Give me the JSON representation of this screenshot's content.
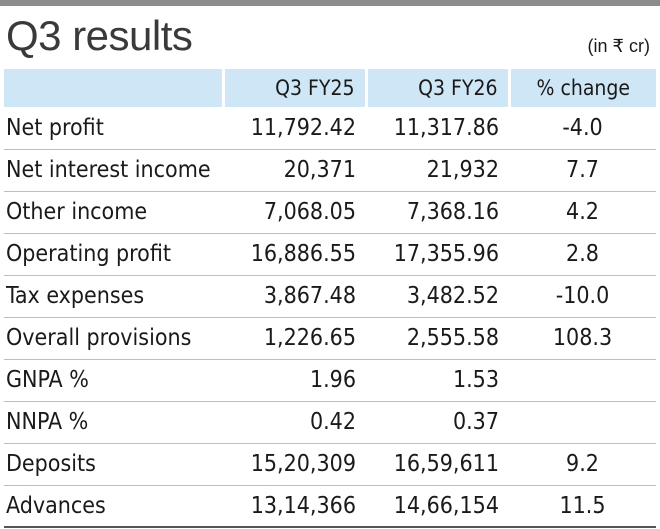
{
  "title": "Q3 results",
  "unit_note": "(in ₹ cr)",
  "chart_data": {
    "type": "table",
    "columns": [
      "",
      "Q3 FY25",
      "Q3 FY26",
      "% change"
    ],
    "rows": [
      {
        "label": "Net profit",
        "q3_fy25": "11,792.42",
        "q3_fy26": "11,317.86",
        "pct_change": "-4.0"
      },
      {
        "label": "Net interest income",
        "q3_fy25": "20,371",
        "q3_fy26": "21,932",
        "pct_change": "7.7"
      },
      {
        "label": "Other income",
        "q3_fy25": "7,068.05",
        "q3_fy26": "7,368.16",
        "pct_change": "4.2"
      },
      {
        "label": "Operating profit",
        "q3_fy25": "16,886.55",
        "q3_fy26": "17,355.96",
        "pct_change": "2.8"
      },
      {
        "label": "Tax expenses",
        "q3_fy25": "3,867.48",
        "q3_fy26": "3,482.52",
        "pct_change": "-10.0"
      },
      {
        "label": "Overall provisions",
        "q3_fy25": "1,226.65",
        "q3_fy26": "2,555.58",
        "pct_change": "108.3"
      },
      {
        "label": "GNPA %",
        "q3_fy25": "1.96",
        "q3_fy26": "1.53",
        "pct_change": ""
      },
      {
        "label": "NNPA %",
        "q3_fy25": "0.42",
        "q3_fy26": "0.37",
        "pct_change": ""
      },
      {
        "label": "Deposits",
        "q3_fy25": "15,20,309",
        "q3_fy26": "16,59,611",
        "pct_change": "9.2"
      },
      {
        "label": "Advances",
        "q3_fy25": "13,14,366",
        "q3_fy26": "14,66,154",
        "pct_change": "11.5"
      }
    ]
  }
}
